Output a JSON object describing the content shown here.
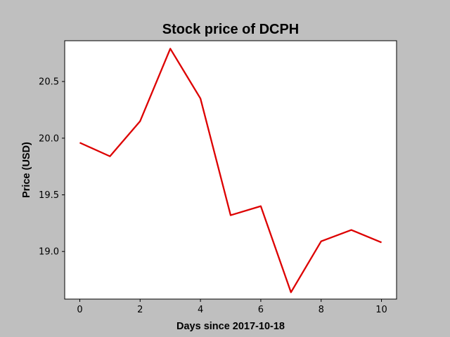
{
  "chart_data": {
    "type": "line",
    "title": "Stock price of DCPH",
    "xlabel": "Days since 2017-10-18",
    "ylabel": "Price (USD)",
    "x": [
      0,
      1,
      2,
      3,
      4,
      5,
      6,
      7,
      8,
      9,
      10
    ],
    "series": [
      {
        "values": [
          19.96,
          19.84,
          20.15,
          20.79,
          20.35,
          19.32,
          19.4,
          18.64,
          19.09,
          19.19,
          19.08
        ],
        "color": "#dd0000"
      }
    ],
    "xticks": [
      0,
      2,
      4,
      6,
      8,
      10
    ],
    "xtick_labels": [
      "0",
      "2",
      "4",
      "6",
      "8",
      "10"
    ],
    "yticks": [
      19.0,
      19.5,
      20.0,
      20.5
    ],
    "ytick_labels": [
      "19.0",
      "19.5",
      "20.0",
      "20.5"
    ],
    "xlim": [
      -0.5,
      10.5
    ],
    "ylim": [
      18.58,
      20.86
    ],
    "grid": false,
    "legend": "none",
    "background_color": "#bfbfbf",
    "plot_background_color": "#ffffff"
  }
}
